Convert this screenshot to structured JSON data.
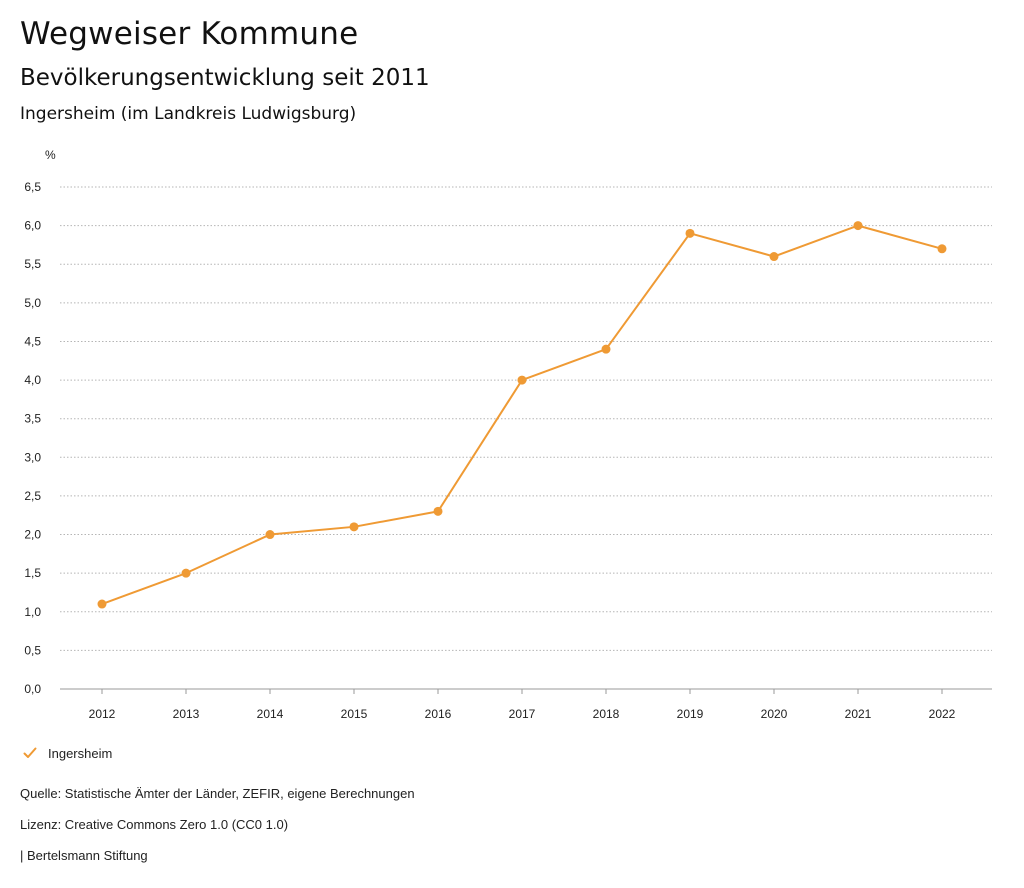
{
  "header": {
    "title": "Wegweiser Kommune",
    "subtitle": "Bevölkerungsentwicklung seit 2011",
    "region": "Ingersheim (im Landkreis Ludwigsburg)"
  },
  "chart_data": {
    "type": "line",
    "title": "Bevölkerungsentwicklung seit 2011",
    "ylabel": "%",
    "xlabel": "",
    "x": [
      "2012",
      "2013",
      "2014",
      "2015",
      "2016",
      "2017",
      "2018",
      "2019",
      "2020",
      "2021",
      "2022"
    ],
    "series": [
      {
        "name": "Ingersheim",
        "values": [
          1.1,
          1.5,
          2.0,
          2.1,
          2.3,
          4.0,
          4.4,
          5.9,
          5.6,
          6.0,
          5.7
        ],
        "color": "#ef9a34"
      }
    ],
    "ylim": [
      0,
      6.5
    ],
    "yticks": [
      "0,0",
      "0,5",
      "1,0",
      "1,5",
      "2,0",
      "2,5",
      "3,0",
      "3,5",
      "4,0",
      "4,5",
      "5,0",
      "5,5",
      "6,0",
      "6,5"
    ],
    "grid": true,
    "legend": "bottom-left"
  },
  "legend": {
    "items": [
      {
        "label": "Ingersheim",
        "icon": "check-icon",
        "color": "#ef9a34"
      }
    ]
  },
  "footer": {
    "source": "Quelle: Statistische Ämter der Länder, ZEFIR, eigene Berechnungen",
    "license": "Lizenz: Creative Commons Zero 1.0 (CC0 1.0)",
    "publisher": "| Bertelsmann Stiftung"
  }
}
